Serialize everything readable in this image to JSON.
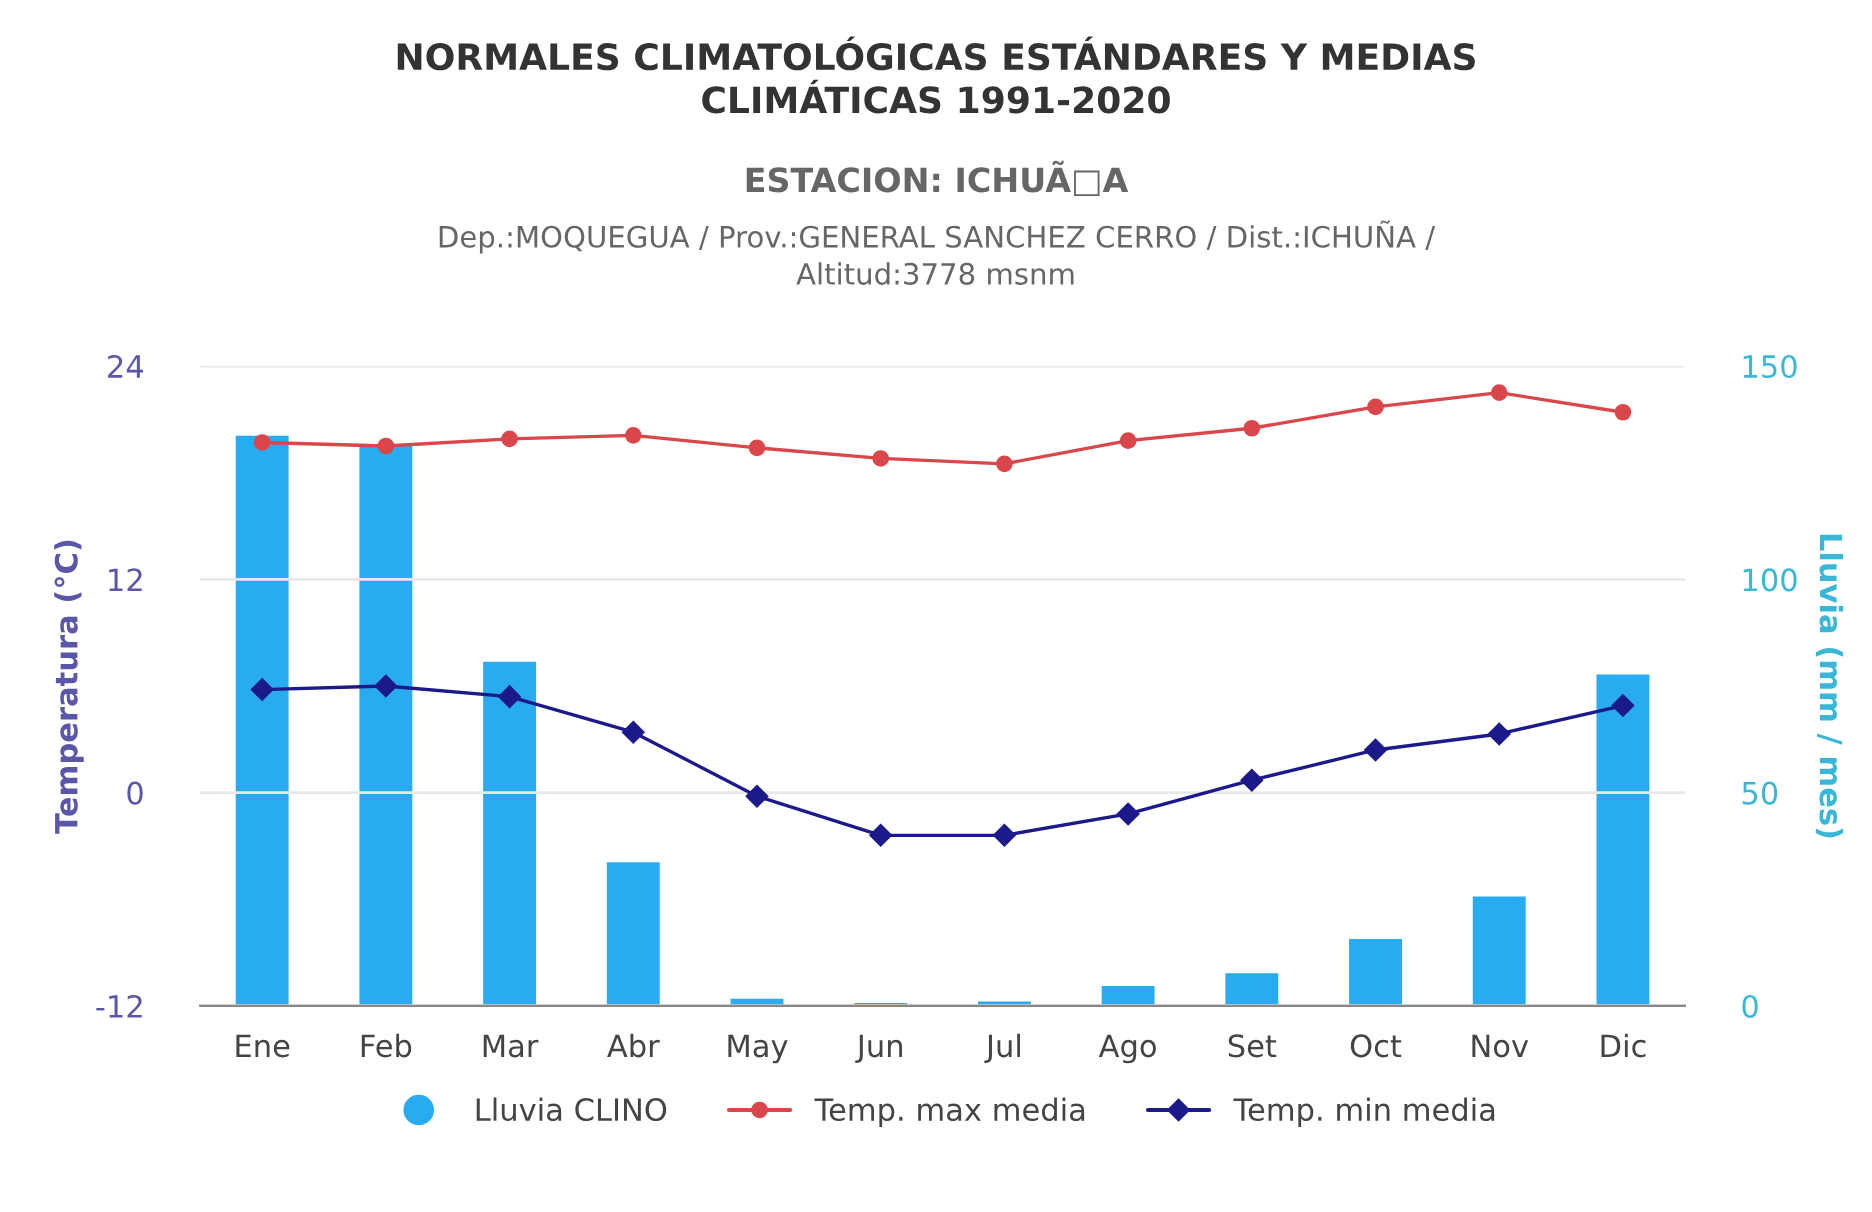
{
  "chart_data": {
    "type": "line",
    "title": "NORMALES CLIMATOLÓGICAS ESTÁNDARES Y MEDIAS\nCLIMÁTICAS 1991-2020",
    "subtitle": "ESTACION: ICHUÃ□A",
    "annotations": [
      "Dep.:MOQUEGUA / Prov.:GENERAL SANCHEZ CERRO / Dist.:ICHUÑA /\nAltitud:3778 msnm"
    ],
    "categories": [
      "Ene",
      "Feb",
      "Mar",
      "Abr",
      "May",
      "Jun",
      "Jul",
      "Ago",
      "Set",
      "Oct",
      "Nov",
      "Dic"
    ],
    "ylabel": "Temperatura (°C)",
    "y2label": "Lluvia (mm / mes)",
    "ylim": [
      -12,
      24
    ],
    "yticks": [
      -12,
      0,
      12,
      24
    ],
    "y2lim": [
      0,
      150
    ],
    "y2ticks": [
      0,
      50,
      100,
      150
    ],
    "grid": "y",
    "legend": "bottom",
    "series": [
      {
        "name": "Lluvia CLINO",
        "type": "bar",
        "axis": "y2",
        "color": "#29abf2",
        "values": [
          134,
          132,
          81,
          34,
          2,
          1,
          1.4,
          5,
          8,
          16,
          26,
          78
        ]
      },
      {
        "name": "Temp. max media",
        "marker": "circle",
        "color": "#d9474a",
        "values": [
          19.7,
          19.5,
          19.9,
          20.1,
          19.4,
          18.8,
          18.5,
          19.8,
          20.5,
          21.7,
          22.5,
          21.4
        ]
      },
      {
        "name": "Temp. min media",
        "marker": "diamond",
        "color": "#1c1a8a",
        "values": [
          5.8,
          6.0,
          5.4,
          3.4,
          -0.2,
          -2.4,
          -2.4,
          -1.2,
          0.7,
          2.4,
          3.3,
          4.9
        ]
      }
    ]
  }
}
